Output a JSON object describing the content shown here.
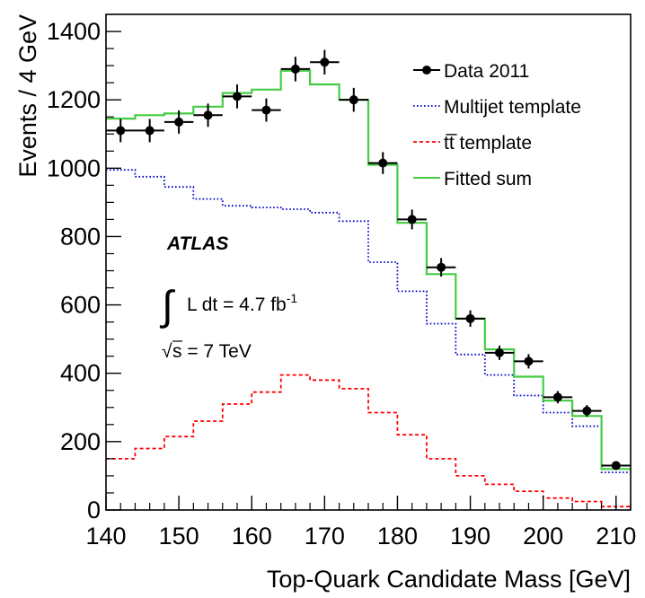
{
  "chart_data": {
    "type": "histogram",
    "xlabel": "Top-Quark Candidate Mass [GeV]",
    "ylabel": "Events / 4 GeV",
    "xlim": [
      140,
      212
    ],
    "ylim": [
      0,
      1450
    ],
    "x_ticks": [
      140,
      150,
      160,
      170,
      180,
      190,
      200,
      210
    ],
    "y_ticks": [
      0,
      200,
      400,
      600,
      800,
      1000,
      1200,
      1400
    ],
    "bin_edges": [
      140,
      144,
      148,
      152,
      156,
      160,
      164,
      168,
      172,
      176,
      180,
      184,
      188,
      192,
      196,
      200,
      204,
      208,
      212
    ],
    "legend": {
      "placement": "top-right",
      "entries": [
        {
          "label": "Data 2011",
          "series": "data"
        },
        {
          "label": "Multijet template",
          "series": "multijet"
        },
        {
          "label": "tt̅ template",
          "series": "ttbar"
        },
        {
          "label": "Fitted sum",
          "series": "fitted"
        }
      ]
    },
    "series": [
      {
        "key": "data",
        "name": "Data 2011",
        "style": "points",
        "color": "#000000",
        "x": [
          142,
          146,
          150,
          154,
          158,
          162,
          166,
          170,
          174,
          178,
          182,
          186,
          190,
          194,
          198,
          202,
          206,
          210
        ],
        "values": [
          1110,
          1110,
          1135,
          1155,
          1210,
          1170,
          1290,
          1310,
          1200,
          1015,
          850,
          710,
          560,
          460,
          435,
          330,
          290,
          130
        ],
        "errors": [
          34,
          34,
          34,
          34,
          35,
          34,
          36,
          36,
          35,
          32,
          29,
          27,
          24,
          21,
          21,
          18,
          17,
          11
        ]
      },
      {
        "key": "multijet",
        "name": "Multijet template",
        "style": "dotted",
        "color": "#0000cc",
        "values": [
          995,
          975,
          945,
          910,
          890,
          885,
          880,
          870,
          845,
          725,
          640,
          545,
          455,
          395,
          335,
          285,
          245,
          110
        ]
      },
      {
        "key": "ttbar",
        "name": "tt̅ template",
        "style": "dashed",
        "color": "#ff0000",
        "values": [
          150,
          180,
          215,
          260,
          310,
          345,
          395,
          380,
          355,
          285,
          220,
          150,
          100,
          75,
          55,
          35,
          25,
          10
        ]
      },
      {
        "key": "fitted",
        "name": "Fitted sum",
        "style": "solid",
        "color": "#44cc44",
        "values": [
          1145,
          1155,
          1160,
          1180,
          1220,
          1230,
          1285,
          1245,
          1200,
          1010,
          840,
          690,
          560,
          470,
          390,
          320,
          275,
          120
        ]
      }
    ],
    "annotations": {
      "experiment": "ATLAS",
      "lumi_prefix": "L dt = 4.7 fb",
      "lumi_sup": "-1",
      "energy": "s = 7 TeV"
    }
  }
}
